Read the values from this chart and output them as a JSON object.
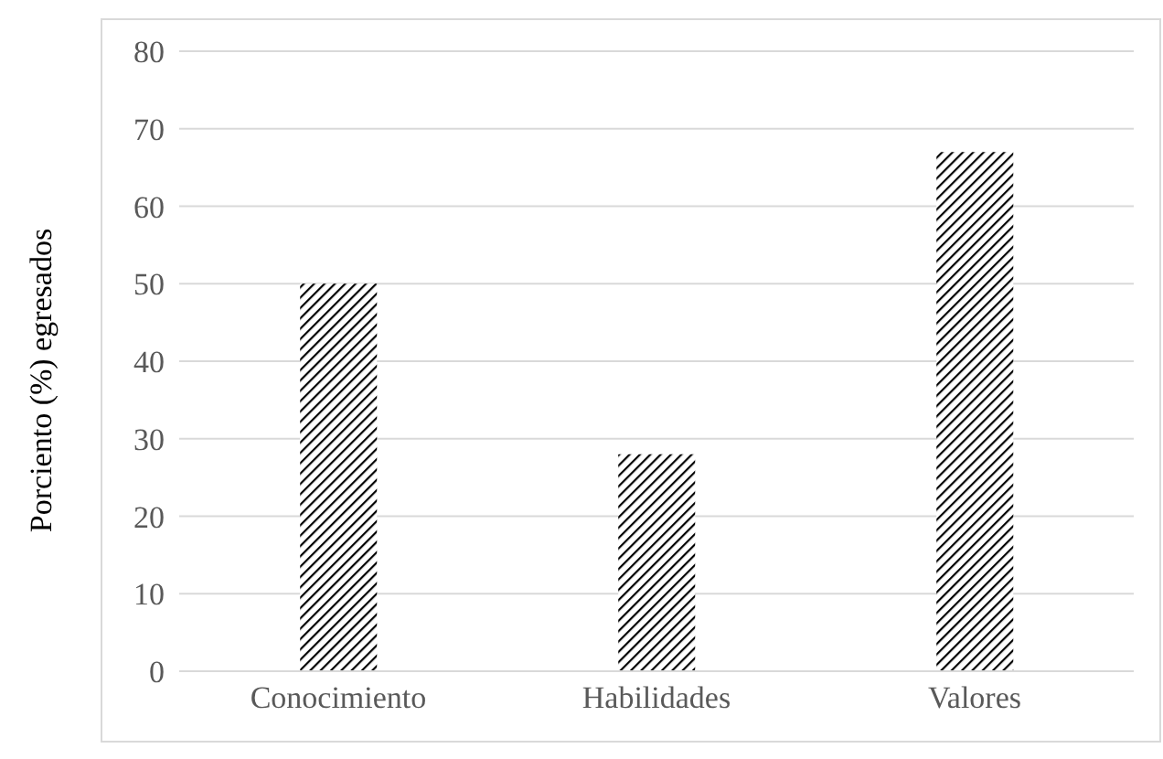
{
  "chart_data": {
    "type": "bar",
    "ylabel": "Porciento (%) egresados",
    "categories": [
      "Conocimiento",
      "Habilidades",
      "Valores"
    ],
    "values": [
      50,
      28,
      67
    ],
    "color": "#000000",
    "ylim": [
      0,
      80
    ],
    "yticks": [
      0,
      10,
      20,
      30,
      40,
      50,
      60,
      70,
      80
    ],
    "grid": "y"
  }
}
